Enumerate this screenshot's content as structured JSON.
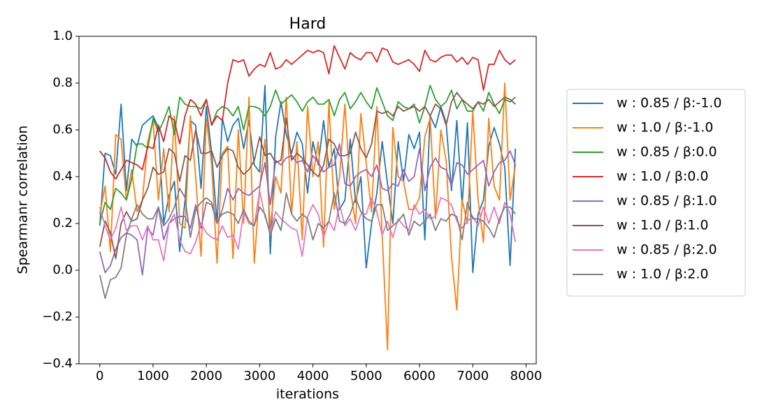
{
  "chart_data": {
    "type": "line",
    "title": "Hard",
    "xlabel": "iterations",
    "ylabel": "Spearmanr correlation",
    "x": [
      0,
      100,
      200,
      300,
      400,
      500,
      600,
      700,
      800,
      900,
      1000,
      1100,
      1200,
      1300,
      1400,
      1500,
      1600,
      1700,
      1800,
      1900,
      2000,
      2100,
      2200,
      2300,
      2400,
      2500,
      2600,
      2700,
      2800,
      2900,
      3000,
      3100,
      3200,
      3300,
      3400,
      3500,
      3600,
      3700,
      3800,
      3900,
      4000,
      4100,
      4200,
      4300,
      4400,
      4500,
      4600,
      4700,
      4800,
      4900,
      5000,
      5100,
      5200,
      5300,
      5400,
      5500,
      5600,
      5700,
      5800,
      5900,
      6000,
      6100,
      6200,
      6300,
      6400,
      6500,
      6600,
      6700,
      6800,
      6900,
      7000,
      7100,
      7200,
      7300,
      7400,
      7500,
      7600,
      7700,
      7800
    ],
    "series": [
      {
        "name": "w : 0.85 / β:-1.0",
        "color": "#1f77b4",
        "values": [
          0.19,
          0.5,
          0.49,
          0.41,
          0.71,
          0.34,
          0.56,
          0.53,
          0.62,
          0.64,
          0.66,
          0.61,
          0.2,
          0.32,
          0.38,
          0.08,
          0.3,
          0.64,
          0.62,
          0.35,
          0.7,
          0.5,
          0.2,
          0.65,
          0.55,
          0.62,
          0.65,
          0.52,
          0.64,
          0.45,
          0.42,
          0.79,
          0.07,
          0.57,
          0.72,
          0.58,
          0.5,
          0.59,
          0.54,
          0.33,
          0.55,
          0.45,
          0.64,
          0.44,
          0.52,
          0.26,
          0.3,
          0.56,
          0.29,
          0.4,
          0.01,
          0.2,
          0.33,
          0.55,
          0.37,
          0.2,
          0.55,
          0.38,
          0.58,
          0.52,
          0.59,
          0.13,
          0.66,
          0.61,
          0.7,
          0.63,
          0.34,
          0.64,
          0.28,
          0.63,
          -0.01,
          0.24,
          0.3,
          0.53,
          0.61,
          0.54,
          0.44,
          0.02,
          0.52
        ]
      },
      {
        "name": "w : 1.0 / β:-1.0",
        "color": "#ff7f0e",
        "values": [
          0.24,
          0.36,
          0.08,
          0.58,
          0.56,
          0.3,
          0.43,
          0.25,
          0.3,
          0.55,
          0.64,
          0.3,
          0.52,
          0.25,
          0.66,
          0.2,
          0.18,
          0.66,
          0.4,
          0.06,
          0.65,
          0.45,
          0.03,
          0.5,
          0.53,
          0.05,
          0.6,
          0.2,
          0.74,
          0.03,
          0.35,
          0.56,
          0.18,
          0.4,
          0.33,
          0.74,
          0.24,
          0.55,
          0.13,
          0.7,
          0.4,
          0.55,
          0.1,
          0.72,
          0.26,
          0.4,
          0.71,
          0.35,
          0.2,
          0.67,
          0.46,
          0.25,
          0.7,
          0.15,
          -0.34,
          0.61,
          0.4,
          0.38,
          0.26,
          0.26,
          0.31,
          0.57,
          0.65,
          0.22,
          0.6,
          0.47,
          0.06,
          -0.17,
          0.3,
          0.2,
          0.68,
          0.3,
          0.12,
          0.65,
          0.36,
          0.3,
          0.8,
          0.3,
          0.45
        ]
      },
      {
        "name": "w : 0.85 / β:0.0",
        "color": "#2ca02c",
        "values": [
          0.2,
          0.29,
          0.26,
          0.35,
          0.33,
          0.3,
          0.39,
          0.54,
          0.54,
          0.52,
          0.65,
          0.59,
          0.64,
          0.7,
          0.58,
          0.74,
          0.71,
          0.7,
          0.7,
          0.69,
          0.73,
          0.62,
          0.68,
          0.7,
          0.69,
          0.66,
          0.7,
          0.6,
          0.7,
          0.7,
          0.69,
          0.66,
          0.7,
          0.77,
          0.71,
          0.73,
          0.75,
          0.72,
          0.68,
          0.72,
          0.74,
          0.71,
          0.71,
          0.73,
          0.66,
          0.73,
          0.76,
          0.69,
          0.72,
          0.76,
          0.72,
          0.69,
          0.78,
          0.72,
          0.66,
          0.64,
          0.72,
          0.7,
          0.69,
          0.71,
          0.63,
          0.7,
          0.79,
          0.73,
          0.7,
          0.72,
          0.77,
          0.69,
          0.73,
          0.68,
          0.68,
          0.72,
          0.68,
          0.76,
          0.71,
          0.67,
          0.73,
          0.72,
          0.74
        ]
      },
      {
        "name": "w : 1.0 / β:0.0",
        "color": "#d62728",
        "values": [
          0.51,
          0.48,
          0.42,
          0.39,
          0.43,
          0.47,
          0.46,
          0.45,
          0.43,
          0.53,
          0.52,
          0.62,
          0.55,
          0.66,
          0.64,
          0.54,
          0.66,
          0.73,
          0.71,
          0.66,
          0.73,
          0.62,
          0.66,
          0.64,
          0.8,
          0.9,
          0.89,
          0.9,
          0.83,
          0.86,
          0.88,
          0.87,
          0.93,
          0.86,
          0.87,
          0.9,
          0.88,
          0.9,
          0.92,
          0.94,
          0.93,
          0.94,
          0.93,
          0.84,
          0.96,
          0.91,
          0.86,
          0.93,
          0.91,
          0.9,
          0.93,
          0.93,
          0.89,
          0.95,
          0.94,
          0.89,
          0.88,
          0.89,
          0.9,
          0.88,
          0.85,
          0.94,
          0.9,
          0.89,
          0.91,
          0.92,
          0.92,
          0.89,
          0.91,
          0.88,
          0.91,
          0.9,
          0.77,
          0.88,
          0.88,
          0.94,
          0.9,
          0.88,
          0.9
        ]
      },
      {
        "name": "w : 0.85 / β:1.0",
        "color": "#9467bd",
        "values": [
          0.08,
          -0.01,
          0.02,
          0.09,
          0.14,
          0.16,
          0.15,
          0.13,
          -0.02,
          0.18,
          0.15,
          0.27,
          0.13,
          0.2,
          0.22,
          0.23,
          0.23,
          0.18,
          0.28,
          0.18,
          0.29,
          0.28,
          0.2,
          0.26,
          0.35,
          0.3,
          0.35,
          0.33,
          0.32,
          0.34,
          0.36,
          0.46,
          0.28,
          0.47,
          0.45,
          0.48,
          0.49,
          0.46,
          0.47,
          0.42,
          0.49,
          0.46,
          0.42,
          0.44,
          0.45,
          0.54,
          0.37,
          0.36,
          0.4,
          0.42,
          0.43,
          0.4,
          0.45,
          0.35,
          0.34,
          0.37,
          0.36,
          0.43,
          0.38,
          0.4,
          0.52,
          0.34,
          0.44,
          0.48,
          0.44,
          0.43,
          0.36,
          0.46,
          0.45,
          0.41,
          0.43,
          0.45,
          0.47,
          0.36,
          0.42,
          0.46,
          0.47,
          0.51,
          0.45
        ]
      },
      {
        "name": "w : 1.0 / β:1.0",
        "color": "#8c564b",
        "values": [
          0.1,
          0.21,
          0.16,
          0.05,
          0.2,
          0.25,
          0.21,
          0.22,
          0.3,
          0.35,
          0.44,
          0.41,
          0.42,
          0.52,
          0.5,
          0.38,
          0.49,
          0.47,
          0.6,
          0.5,
          0.5,
          0.51,
          0.44,
          0.49,
          0.52,
          0.51,
          0.44,
          0.41,
          0.43,
          0.47,
          0.57,
          0.49,
          0.5,
          0.46,
          0.47,
          0.65,
          0.47,
          0.5,
          0.48,
          0.45,
          0.42,
          0.4,
          0.45,
          0.56,
          0.54,
          0.49,
          0.49,
          0.5,
          0.59,
          0.52,
          0.48,
          0.54,
          0.68,
          0.67,
          0.68,
          0.66,
          0.7,
          0.68,
          0.69,
          0.7,
          0.68,
          0.7,
          0.66,
          0.71,
          0.69,
          0.62,
          0.72,
          0.76,
          0.73,
          0.71,
          0.69,
          0.72,
          0.71,
          0.73,
          0.7,
          0.72,
          0.74,
          0.73,
          0.71
        ]
      },
      {
        "name": "w : 0.85 / β:2.0",
        "color": "#e377c2",
        "values": [
          0.27,
          0.19,
          0.13,
          0.18,
          0.27,
          0.17,
          0.19,
          0.19,
          0.13,
          0.19,
          0.13,
          0.13,
          0.04,
          0.2,
          0.24,
          0.13,
          0.08,
          0.07,
          0.12,
          0.2,
          0.16,
          0.14,
          0.13,
          0.19,
          0.14,
          0.15,
          0.09,
          0.25,
          0.2,
          0.19,
          0.34,
          0.23,
          0.16,
          0.25,
          0.22,
          0.2,
          0.18,
          0.17,
          0.06,
          0.23,
          0.28,
          0.24,
          0.14,
          0.21,
          0.17,
          0.28,
          0.19,
          0.22,
          0.17,
          0.24,
          0.24,
          0.31,
          0.25,
          0.15,
          0.21,
          0.14,
          0.22,
          0.19,
          0.17,
          0.28,
          0.24,
          0.26,
          0.22,
          0.23,
          0.31,
          0.3,
          0.28,
          0.21,
          0.18,
          0.21,
          0.23,
          0.19,
          0.27,
          0.2,
          0.27,
          0.2,
          0.29,
          0.24,
          0.12
        ]
      },
      {
        "name": "w : 1.0 / β:2.0",
        "color": "#7f7f7f",
        "values": [
          -0.02,
          -0.12,
          -0.04,
          -0.03,
          0.01,
          0.15,
          0.22,
          0.28,
          0.24,
          0.22,
          0.22,
          0.27,
          0.19,
          0.22,
          0.27,
          0.35,
          0.31,
          0.14,
          0.26,
          0.29,
          0.31,
          0.29,
          0.21,
          0.24,
          0.25,
          0.24,
          0.2,
          0.26,
          0.21,
          0.19,
          0.27,
          0.24,
          0.15,
          0.22,
          0.17,
          0.33,
          0.24,
          0.21,
          0.24,
          0.22,
          0.13,
          0.2,
          0.18,
          0.21,
          0.33,
          0.21,
          0.2,
          0.24,
          0.31,
          0.25,
          0.22,
          0.21,
          0.28,
          0.28,
          0.17,
          0.19,
          0.21,
          0.24,
          0.15,
          0.21,
          0.19,
          0.21,
          0.24,
          0.17,
          0.22,
          0.21,
          0.24,
          0.23,
          0.13,
          0.29,
          0.22,
          0.22,
          0.21,
          0.18,
          0.14,
          0.22,
          0.27,
          0.27,
          0.24
        ]
      }
    ],
    "xlim": [
      -390,
      8190
    ],
    "ylim": [
      -0.4,
      1.0
    ],
    "xticks": [
      0,
      1000,
      2000,
      3000,
      4000,
      5000,
      6000,
      7000,
      8000
    ],
    "yticks": [
      {
        "value": -0.4,
        "label": "−0.4"
      },
      {
        "value": -0.2,
        "label": "−0.2"
      },
      {
        "value": 0,
        "label": "0.0"
      },
      {
        "value": 0.2,
        "label": "0.2"
      },
      {
        "value": 0.4,
        "label": "0.4"
      },
      {
        "value": 0.6,
        "label": "0.6"
      },
      {
        "value": 0.8,
        "label": "0.8"
      },
      {
        "value": 1.0,
        "label": "1.0"
      }
    ],
    "grid": false,
    "legend": "outside-right"
  }
}
